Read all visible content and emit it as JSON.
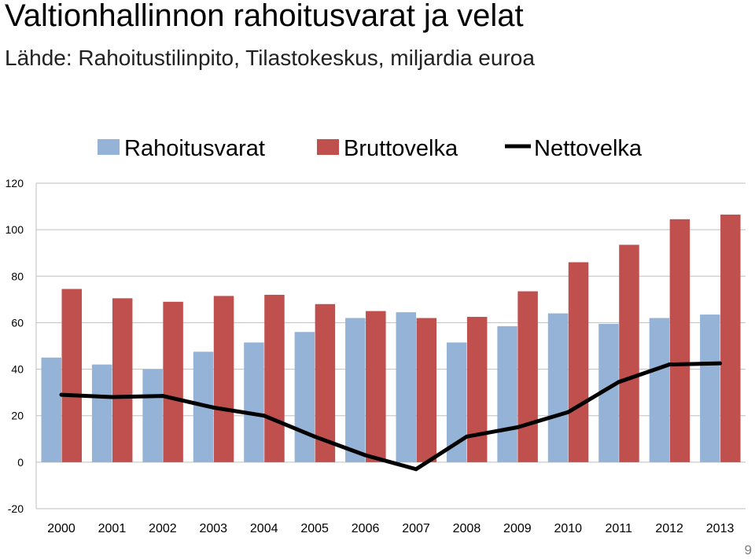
{
  "title": "Valtionhallinnon rahoitusvarat ja velat",
  "subtitle": "Lähde: Rahoitustilinpito, Tilastokeskus, miljardia euroa",
  "page_number": "9",
  "colors": {
    "rahoitusvarat": "#95B3D7",
    "bruttovelka": "#C0504D",
    "nettovelka": "#000000",
    "grid": "#BFBFBF"
  },
  "chart_data": {
    "type": "bar",
    "categories": [
      "2000",
      "2001",
      "2002",
      "2003",
      "2004",
      "2005",
      "2006",
      "2007",
      "2008",
      "2009",
      "2010",
      "2011",
      "2012",
      "2013"
    ],
    "series": [
      {
        "name": "Rahoitusvarat",
        "type": "bar",
        "values": [
          45,
          42,
          40,
          47.5,
          51.5,
          56,
          62,
          64.5,
          51.5,
          58.5,
          64,
          59.5,
          62,
          63.5
        ]
      },
      {
        "name": "Bruttovelka",
        "type": "bar",
        "values": [
          74.5,
          70.5,
          69,
          71.5,
          72,
          68,
          65,
          62,
          62.5,
          73.5,
          86,
          93.5,
          104.5,
          106.5
        ]
      },
      {
        "name": "Nettovelka",
        "type": "line",
        "values": [
          29,
          28,
          28.5,
          23.5,
          20,
          11,
          3,
          -3,
          11,
          15,
          21.5,
          34.5,
          42,
          42.5
        ]
      }
    ],
    "yticks": [
      "-20",
      "0",
      "20",
      "40",
      "60",
      "80",
      "100",
      "120"
    ],
    "ylim": [
      -20,
      120
    ],
    "grid": true,
    "legend_position": "top"
  }
}
